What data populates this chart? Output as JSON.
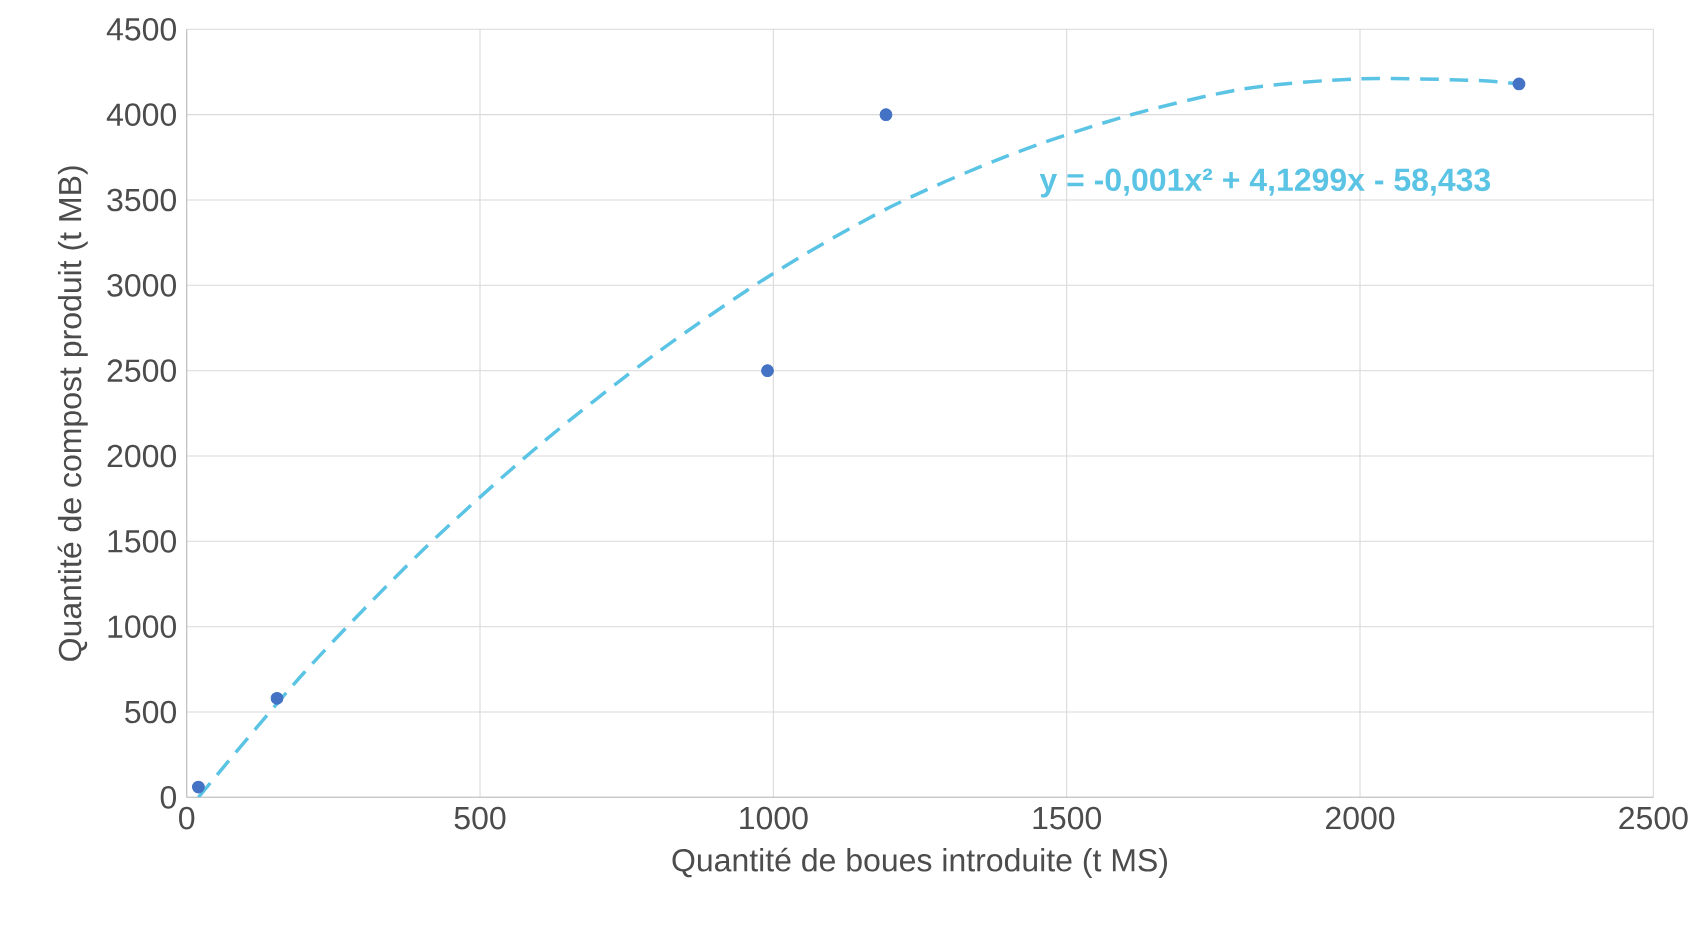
{
  "chart_data": {
    "type": "scatter",
    "xlabel": "Quantité de boues introduite (t MS)",
    "ylabel": "Quantité de compost produit (t MB)",
    "xlim": [
      0,
      2500
    ],
    "ylim": [
      0,
      4500
    ],
    "xticks": [
      0,
      500,
      1000,
      1500,
      2000,
      2500
    ],
    "yticks": [
      0,
      500,
      1000,
      1500,
      2000,
      2500,
      3000,
      3500,
      4000,
      4500
    ],
    "grid": true,
    "series": [
      {
        "marker": "circle",
        "color": "#4472c4",
        "x": [
          20,
          154,
          990,
          1192,
          2271
        ],
        "values": [
          60,
          580,
          2500,
          4000,
          4180
        ]
      },
      {
        "type": "line",
        "color": "#5bc4e5",
        "line_style": "dashed",
        "marker": "none",
        "x": [
          20,
          200,
          400,
          600,
          800,
          1000,
          1200,
          1400,
          1600,
          1800,
          2000,
          2200,
          2270
        ],
        "values": [
          0,
          730,
          1440,
          2060,
          2600,
          3070,
          3460,
          3760,
          3990,
          4150,
          4210,
          4200,
          4180
        ]
      }
    ],
    "annotations": [
      "y = -0,001x² + 4,1299x - 58,433"
    ]
  }
}
